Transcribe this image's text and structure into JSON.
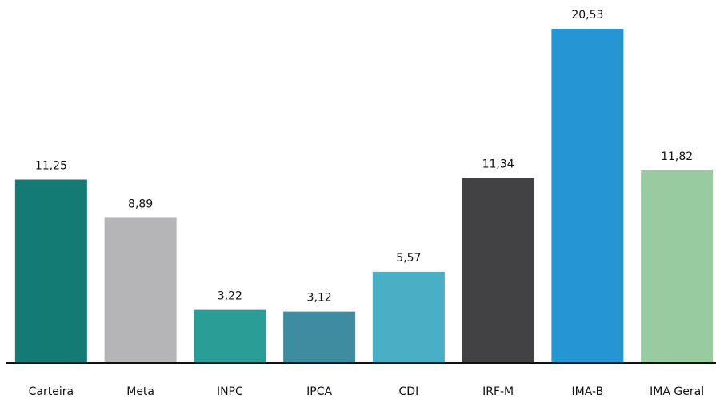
{
  "chart_data": {
    "type": "bar",
    "categories": [
      "Carteira",
      "Meta",
      "INPC",
      "IPCA",
      "CDI",
      "IRF-M",
      "IMA-B",
      "IMA Geral"
    ],
    "values": [
      11.25,
      8.89,
      3.22,
      3.12,
      5.57,
      11.34,
      20.53,
      11.82
    ],
    "value_labels": [
      "11,25",
      "8,89",
      "3,22",
      "3,12",
      "5,57",
      "11,34",
      "20,53",
      "11,82"
    ],
    "colors": [
      "#137b74",
      "#b5b5b7",
      "#2a9d96",
      "#3d8c9f",
      "#4aaec4",
      "#424244",
      "#2596d2",
      "#99cba0"
    ]
  }
}
